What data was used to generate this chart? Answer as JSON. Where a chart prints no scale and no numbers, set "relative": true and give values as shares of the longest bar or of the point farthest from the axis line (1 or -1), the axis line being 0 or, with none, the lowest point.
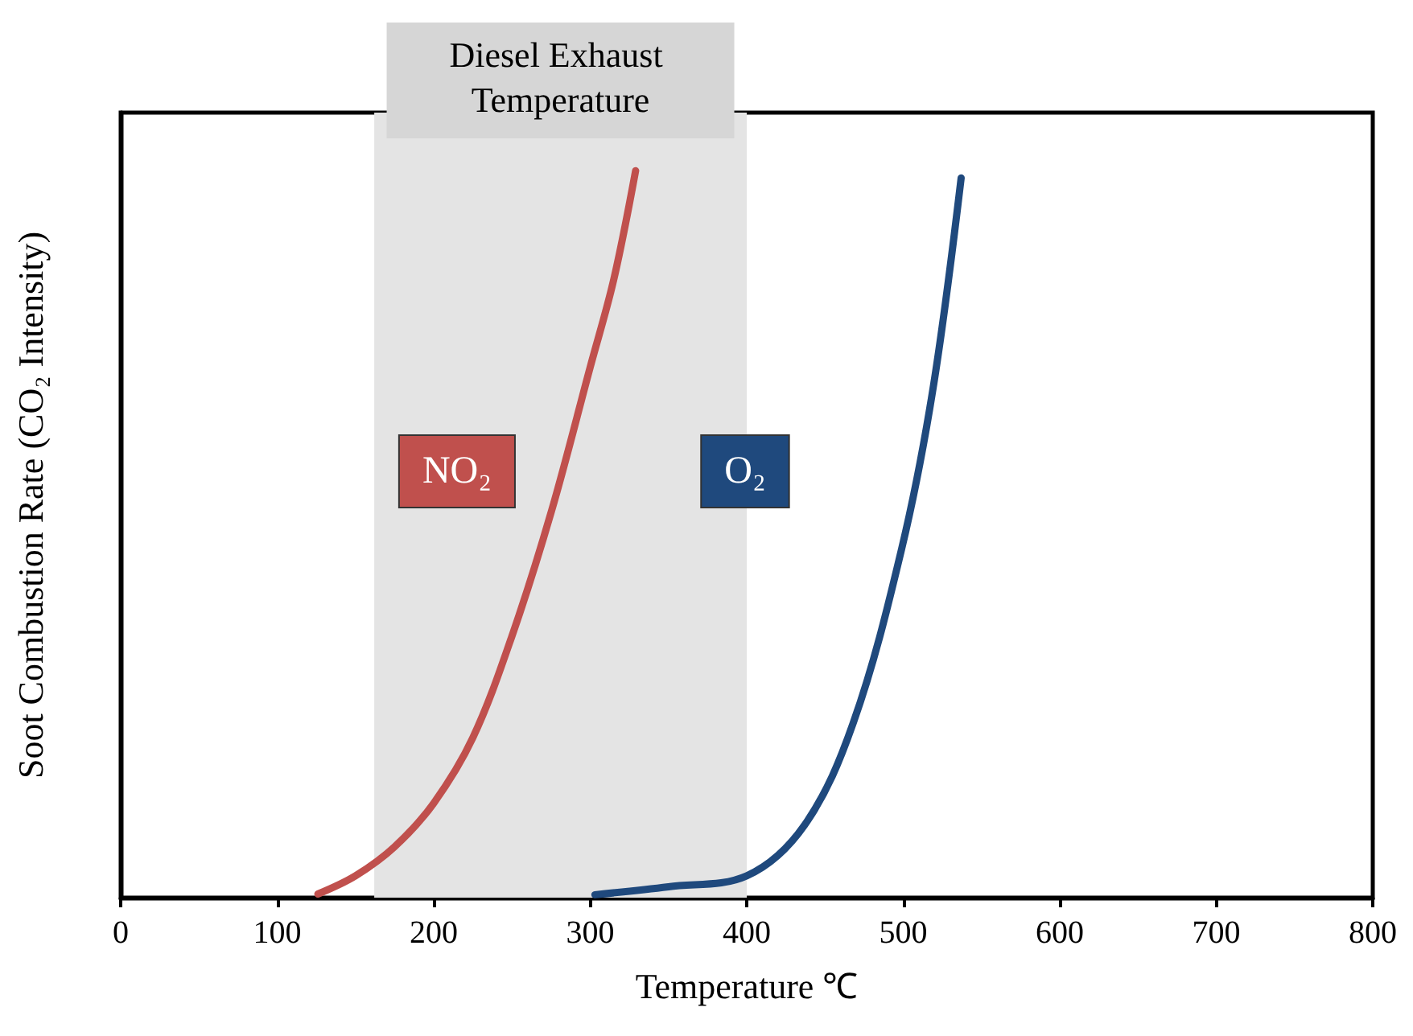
{
  "chart_data": {
    "type": "line",
    "relative": true,
    "xlabel": "Temperature ℃",
    "ylabel": "Soot Combustion Rate (CO₂ Intensity)",
    "xlim": [
      0,
      800
    ],
    "xticks": [
      0,
      100,
      200,
      300,
      400,
      500,
      600,
      700,
      800
    ],
    "legend": false,
    "marker": "none",
    "line_style": "solid",
    "grid": false,
    "bands": [
      {
        "axis": "x",
        "from": 162,
        "to": 400,
        "label": "Diesel Exhaust Temperature",
        "color": "#e4e4e4"
      }
    ],
    "series": [
      {
        "name": "NO₂",
        "color": "#c0504d",
        "x": [
          126,
          150,
          175,
          200,
          225,
          250,
          275,
          300,
          315,
          329
        ],
        "values": [
          0.005,
          0.03,
          0.07,
          0.13,
          0.22,
          0.36,
          0.53,
          0.73,
          0.85,
          1
        ]
      },
      {
        "name": "O₂",
        "color": "#1f497d",
        "x": [
          303,
          350,
          400,
          437,
          468,
          499,
          519,
          537
        ],
        "values": [
          0.004,
          0.015,
          0.03,
          0.1,
          0.24,
          0.48,
          0.7,
          0.99
        ]
      }
    ]
  }
}
